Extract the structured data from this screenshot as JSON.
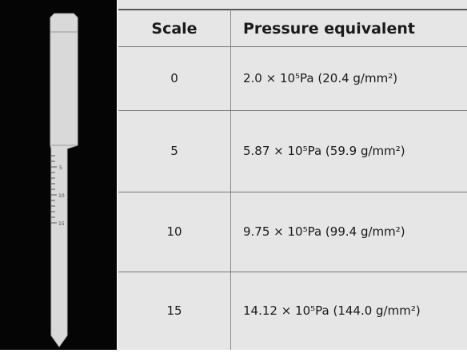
{
  "table": {
    "header": [
      "Scale",
      "Pressure equivalent"
    ],
    "rows": [
      [
        "0",
        "2.0 × 10⁵Pa (20.4 g/mm²)"
      ],
      [
        "5",
        "5.87 × 10⁵Pa (59.9 g/mm²)"
      ],
      [
        "10",
        "9.75 × 10⁵Pa (99.4 g/mm²)"
      ],
      [
        "15",
        "14.12 × 10⁵Pa (144.0 g/mm²)"
      ]
    ]
  },
  "gauge": {
    "labels": [
      "5",
      "10",
      "15"
    ]
  }
}
